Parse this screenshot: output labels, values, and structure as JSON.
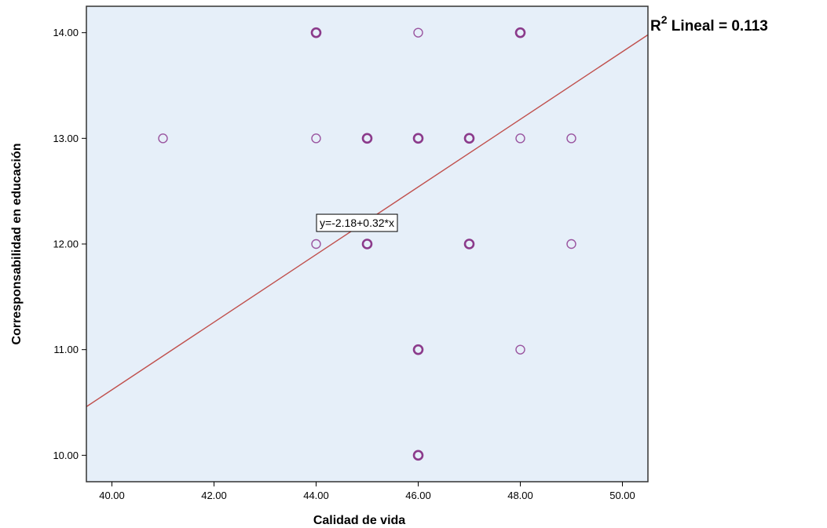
{
  "chart_data": {
    "type": "scatter",
    "title": "",
    "xlabel": "Calidad de vida",
    "ylabel": "Corresponsabilidad en educación",
    "xlim": [
      39.5,
      50.5
    ],
    "ylim": [
      9.75,
      14.25
    ],
    "x_ticks": [
      "40.00",
      "42.00",
      "44.00",
      "46.00",
      "48.00",
      "50.00"
    ],
    "y_ticks": [
      "10.00",
      "11.00",
      "12.00",
      "13.00",
      "14.00"
    ],
    "grid": false,
    "points": [
      {
        "x": 44,
        "y": 14,
        "bold": true
      },
      {
        "x": 46,
        "y": 14,
        "bold": false
      },
      {
        "x": 48,
        "y": 14,
        "bold": true
      },
      {
        "x": 41,
        "y": 13,
        "bold": false
      },
      {
        "x": 44,
        "y": 13,
        "bold": false
      },
      {
        "x": 45,
        "y": 13,
        "bold": true
      },
      {
        "x": 46,
        "y": 13,
        "bold": true
      },
      {
        "x": 47,
        "y": 13,
        "bold": true
      },
      {
        "x": 48,
        "y": 13,
        "bold": false
      },
      {
        "x": 49,
        "y": 13,
        "bold": false
      },
      {
        "x": 44,
        "y": 12,
        "bold": false
      },
      {
        "x": 45,
        "y": 12,
        "bold": true
      },
      {
        "x": 47,
        "y": 12,
        "bold": true
      },
      {
        "x": 49,
        "y": 12,
        "bold": false
      },
      {
        "x": 46,
        "y": 11,
        "bold": true
      },
      {
        "x": 48,
        "y": 11,
        "bold": false
      },
      {
        "x": 46,
        "y": 10,
        "bold": true
      }
    ],
    "fit_line": {
      "intercept": -2.18,
      "slope": 0.32
    },
    "fit_label": "y=-2.18+0.32*x",
    "fit_label_at": {
      "x": 44.8,
      "y": 12.2
    },
    "r2_prefix": "R",
    "r2_sup": "2",
    "r2_text": " Lineal = 0.113",
    "colors": {
      "plot_bg": "#e6eff9",
      "marker": "#8b3a8b",
      "marker_light": "#9a55a0",
      "fit_line": "#c0504d",
      "frame": "#333333"
    }
  }
}
